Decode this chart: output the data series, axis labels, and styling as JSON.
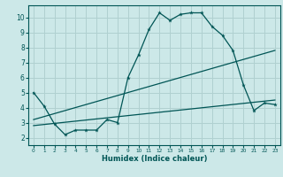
{
  "xlabel": "Humidex (Indice chaleur)",
  "bg_color": "#cce8e8",
  "grid_color": "#b0d0d0",
  "line_color": "#005555",
  "xlim": [
    -0.5,
    23.5
  ],
  "ylim": [
    1.5,
    10.8
  ],
  "yticks": [
    2,
    3,
    4,
    5,
    6,
    7,
    8,
    9,
    10
  ],
  "xticks": [
    0,
    1,
    2,
    3,
    4,
    5,
    6,
    7,
    8,
    9,
    10,
    11,
    12,
    13,
    14,
    15,
    16,
    17,
    18,
    19,
    20,
    21,
    22,
    23
  ],
  "line1_x": [
    0,
    1,
    2,
    3,
    4,
    5,
    6,
    7,
    8,
    9,
    10,
    11,
    12,
    13,
    14,
    15,
    16,
    17,
    18,
    19,
    20,
    21,
    22,
    23
  ],
  "line1_y": [
    5.0,
    4.1,
    2.9,
    2.2,
    2.5,
    2.5,
    2.5,
    3.2,
    3.0,
    6.0,
    7.5,
    9.2,
    10.3,
    9.8,
    10.2,
    10.3,
    10.3,
    9.4,
    8.8,
    7.8,
    5.5,
    3.8,
    4.3,
    4.2
  ],
  "line2_x": [
    0,
    23
  ],
  "line2_y": [
    3.2,
    7.8
  ],
  "line3_x": [
    0,
    23
  ],
  "line3_y": [
    2.8,
    4.5
  ]
}
